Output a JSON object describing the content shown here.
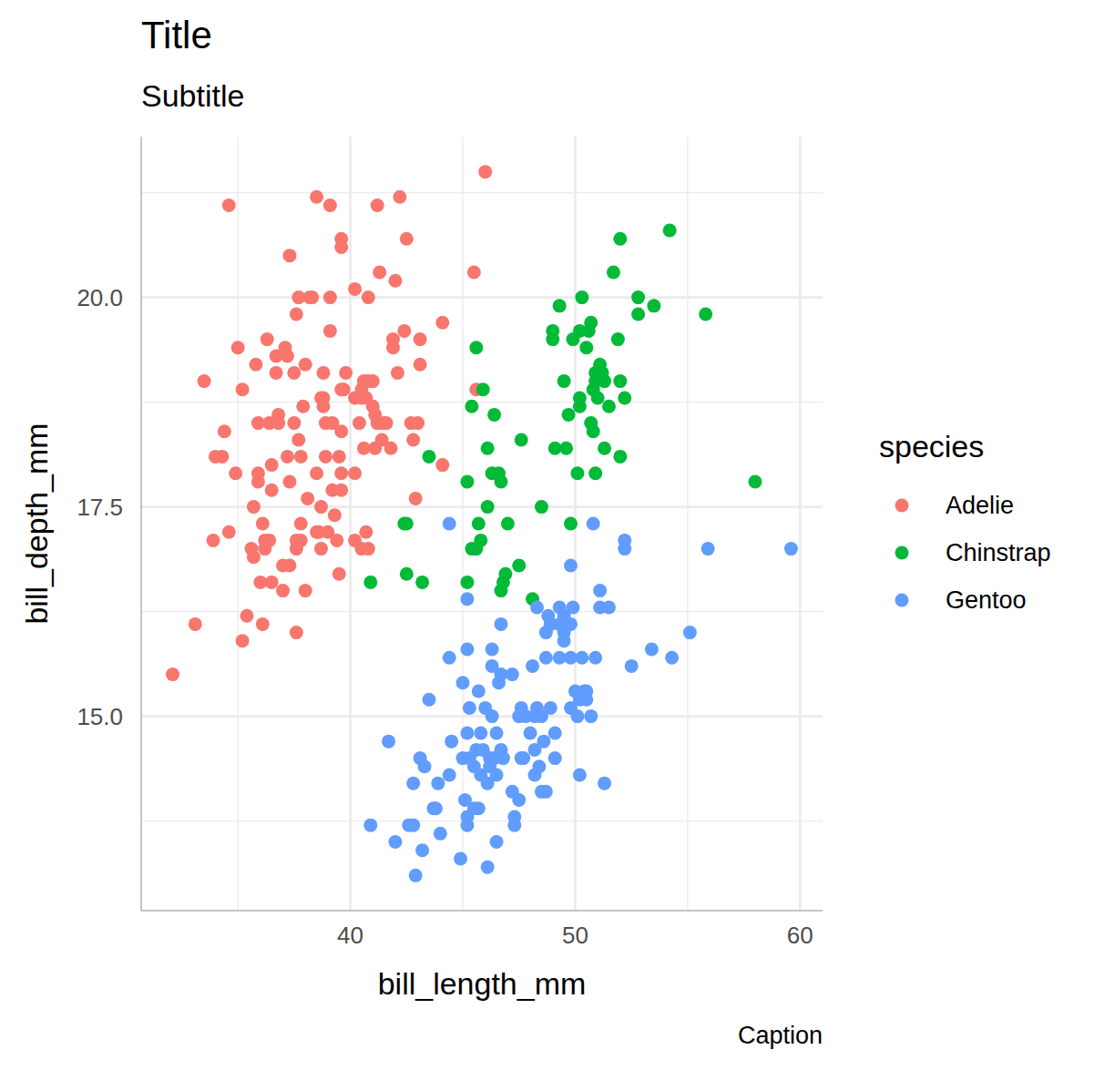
{
  "chart_data": {
    "type": "scatter",
    "title": "Title",
    "subtitle": "Subtitle",
    "caption": "Caption",
    "xlabel": "bill_length_mm",
    "ylabel": "bill_depth_mm",
    "legend_title": "species",
    "legend": "right",
    "grid": true,
    "marker": "circle",
    "xlim": [
      30.7,
      61.0
    ],
    "xticks": [
      40,
      50,
      60
    ],
    "ylim": [
      12.68,
      21.92
    ],
    "yticks": [
      {
        "value": 15,
        "label": "15.0"
      },
      {
        "value": 17.5,
        "label": "17.5"
      },
      {
        "value": 20,
        "label": "20.0"
      }
    ],
    "series": [
      {
        "name": "Adelie",
        "color": "#F8766D",
        "x": [
          32.1,
          34.6,
          33.5,
          33.1,
          33.9,
          34.0,
          34.3,
          34.4,
          34.6,
          35.2,
          34.9,
          35.0,
          35.2,
          35.4,
          35.6,
          35.7,
          35.7,
          35.9,
          35.9,
          35.9,
          35.8,
          36.0,
          36.1,
          36.1,
          36.2,
          36.2,
          36.3,
          36.4,
          36.5,
          36.5,
          36.4,
          36.5,
          36.7,
          36.7,
          36.8,
          36.8,
          37.0,
          37.0,
          37.1,
          37.2,
          37.3,
          37.2,
          37.3,
          37.3,
          37.5,
          37.5,
          37.6,
          37.6,
          37.6,
          37.6,
          37.7,
          37.8,
          37.7,
          37.8,
          37.8,
          37.9,
          38.0,
          38.0,
          38.1,
          38.2,
          38.3,
          38.5,
          38.5,
          38.5,
          38.6,
          38.7,
          38.7,
          38.7,
          38.8,
          38.8,
          38.8,
          38.9,
          38.9,
          39.0,
          39.1,
          39.1,
          39.1,
          39.2,
          39.2,
          39.3,
          39.4,
          39.5,
          39.5,
          39.6,
          39.6,
          39.6,
          39.6,
          39.6,
          39.6,
          39.7,
          39.8,
          40.2,
          40.2,
          40.2,
          40.2,
          40.4,
          40.5,
          40.5,
          40.5,
          40.6,
          40.6,
          40.7,
          40.8,
          40.8,
          40.7,
          40.8,
          41.0,
          41.0,
          41.1,
          41.1,
          41.2,
          41.2,
          41.3,
          41.3,
          41.4,
          41.5,
          41.6,
          41.8,
          41.9,
          41.9,
          42.0,
          42.1,
          42.2,
          42.4,
          42.5,
          42.7,
          42.8,
          42.9,
          43.0,
          43.1,
          43.1,
          44.1,
          44.1,
          45.5,
          45.6,
          46.0
        ],
        "values": [
          15.5,
          21.1,
          19.0,
          16.1,
          17.1,
          18.1,
          18.1,
          18.4,
          17.2,
          15.9,
          17.9,
          19.4,
          18.9,
          16.2,
          17.0,
          16.9,
          17.5,
          18.5,
          17.8,
          17.9,
          19.2,
          16.6,
          16.1,
          17.3,
          17.1,
          17.0,
          19.5,
          17.1,
          18.0,
          17.7,
          18.5,
          16.6,
          19.1,
          19.3,
          18.6,
          18.5,
          16.5,
          16.8,
          19.4,
          19.3,
          20.5,
          18.1,
          17.8,
          16.8,
          18.5,
          19.1,
          17.0,
          17.1,
          16.0,
          19.8,
          20.0,
          17.3,
          18.3,
          17.1,
          18.1,
          18.7,
          19.2,
          16.5,
          17.6,
          20.0,
          20.0,
          21.2,
          17.9,
          17.2,
          17.2,
          17.0,
          17.5,
          18.8,
          18.8,
          19.1,
          18.7,
          18.5,
          18.1,
          17.2,
          21.1,
          20.0,
          19.6,
          18.5,
          17.7,
          17.4,
          17.1,
          16.7,
          18.1,
          17.9,
          17.7,
          20.6,
          20.7,
          18.9,
          18.4,
          18.9,
          19.1,
          20.1,
          18.8,
          17.9,
          17.1,
          18.5,
          18.9,
          18.8,
          17.0,
          18.2,
          19.0,
          18.8,
          20.0,
          19.0,
          17.2,
          17.0,
          18.7,
          19.0,
          18.6,
          18.2,
          18.5,
          21.1,
          20.3,
          18.5,
          18.3,
          18.5,
          18.5,
          18.2,
          19.4,
          19.5,
          20.2,
          19.1,
          21.2,
          19.6,
          20.7,
          18.5,
          18.3,
          17.6,
          18.5,
          19.2,
          19.5,
          18.0,
          19.7,
          20.3,
          18.9,
          21.5
        ]
      },
      {
        "name": "Chinstrap",
        "color": "#00BA38",
        "x": [
          40.9,
          42.4,
          42.5,
          42.5,
          43.2,
          43.5,
          45.2,
          45.2,
          45.4,
          45.6,
          45.4,
          45.6,
          45.7,
          45.8,
          45.9,
          46.1,
          46.1,
          46.4,
          46.3,
          46.6,
          46.7,
          46.7,
          46.8,
          46.9,
          47.0,
          47.5,
          47.6,
          48.1,
          48.5,
          49.0,
          49.0,
          49.1,
          49.3,
          49.5,
          49.6,
          49.7,
          49.8,
          49.9,
          50.1,
          50.2,
          50.2,
          50.3,
          50.2,
          50.5,
          50.6,
          50.7,
          50.7,
          50.8,
          50.9,
          50.8,
          50.9,
          50.9,
          51.0,
          51.1,
          51.2,
          51.3,
          51.3,
          51.5,
          51.7,
          51.9,
          52.0,
          52.0,
          52.0,
          52.2,
          52.8,
          52.8,
          53.5,
          54.2,
          55.8,
          58.0
        ],
        "values": [
          16.6,
          17.3,
          17.3,
          16.7,
          16.6,
          18.1,
          16.6,
          17.8,
          18.7,
          19.4,
          17.0,
          17.0,
          17.3,
          17.1,
          18.9,
          18.2,
          17.5,
          18.6,
          17.9,
          17.9,
          17.8,
          16.5,
          16.6,
          16.7,
          17.3,
          16.8,
          18.3,
          16.4,
          17.5,
          19.6,
          19.5,
          18.2,
          19.9,
          19.0,
          18.2,
          18.6,
          17.3,
          19.5,
          17.9,
          18.8,
          18.7,
          20.0,
          19.6,
          19.4,
          19.6,
          19.7,
          18.5,
          18.4,
          19.1,
          18.9,
          19.0,
          17.9,
          18.8,
          19.2,
          19.1,
          18.2,
          19.0,
          18.7,
          20.3,
          19.5,
          19.0,
          18.1,
          20.7,
          18.8,
          19.8,
          20.0,
          19.9,
          20.8,
          19.8,
          17.8
        ]
      },
      {
        "name": "Gentoo",
        "color": "#619CFF",
        "x": [
          40.9,
          41.7,
          42.0,
          42.6,
          42.8,
          42.8,
          42.9,
          43.1,
          43.2,
          43.3,
          43.5,
          43.7,
          43.8,
          43.9,
          44.0,
          44.4,
          44.4,
          44.4,
          44.5,
          44.9,
          45.0,
          45.0,
          45.1,
          45.2,
          45.2,
          45.2,
          45.2,
          45.2,
          45.3,
          45.3,
          45.5,
          45.5,
          45.6,
          45.7,
          45.7,
          45.8,
          45.8,
          45.9,
          46.0,
          46.1,
          46.1,
          46.2,
          46.2,
          46.3,
          46.3,
          46.3,
          46.4,
          46.5,
          46.5,
          46.5,
          46.6,
          46.7,
          46.7,
          46.7,
          46.8,
          47.2,
          47.2,
          47.3,
          47.3,
          47.5,
          47.5,
          47.6,
          47.6,
          47.7,
          47.8,
          48.0,
          48.1,
          48.2,
          48.2,
          48.2,
          48.3,
          48.3,
          48.4,
          48.5,
          48.5,
          48.6,
          48.7,
          48.7,
          48.7,
          48.8,
          48.9,
          48.9,
          49.1,
          49.1,
          49.3,
          49.3,
          49.3,
          49.5,
          49.5,
          49.5,
          49.6,
          49.8,
          49.8,
          49.8,
          49.8,
          49.9,
          50.0,
          50.1,
          50.2,
          50.2,
          50.3,
          50.4,
          50.5,
          50.5,
          50.7,
          50.8,
          50.9,
          51.1,
          51.1,
          51.3,
          51.5,
          52.2,
          52.2,
          52.5,
          53.4,
          54.3,
          55.1,
          55.9,
          59.6
        ],
        "values": [
          13.7,
          14.7,
          13.5,
          13.7,
          13.7,
          14.2,
          13.1,
          14.5,
          13.4,
          14.4,
          15.2,
          13.9,
          13.9,
          14.2,
          13.6,
          17.3,
          15.7,
          14.3,
          14.7,
          13.3,
          15.4,
          14.5,
          14.0,
          16.4,
          15.8,
          14.8,
          13.8,
          13.7,
          14.5,
          15.1,
          14.4,
          13.9,
          14.6,
          15.3,
          13.9,
          14.3,
          14.8,
          14.6,
          15.1,
          14.2,
          13.2,
          14.5,
          14.4,
          15.8,
          15.6,
          15.0,
          14.5,
          14.8,
          13.5,
          14.3,
          15.4,
          15.5,
          16.1,
          14.6,
          14.5,
          15.5,
          14.1,
          13.8,
          13.7,
          15.0,
          14.0,
          14.5,
          15.1,
          14.5,
          15.0,
          14.8,
          15.6,
          15.0,
          14.3,
          14.6,
          15.1,
          16.3,
          14.4,
          15.0,
          14.1,
          14.7,
          14.1,
          15.7,
          16.0,
          16.2,
          15.1,
          16.1,
          14.8,
          14.5,
          15.7,
          16.3,
          16.1,
          15.9,
          16.2,
          16.0,
          16.1,
          15.7,
          15.1,
          16.8,
          16.1,
          16.3,
          15.3,
          15.0,
          14.3,
          15.2,
          15.7,
          15.3,
          15.2,
          15.3,
          15.0,
          17.3,
          15.7,
          16.5,
          16.3,
          14.2,
          16.3,
          17.0,
          17.1,
          15.6,
          15.8,
          15.7,
          16.0,
          17.0,
          17.0
        ]
      }
    ]
  }
}
